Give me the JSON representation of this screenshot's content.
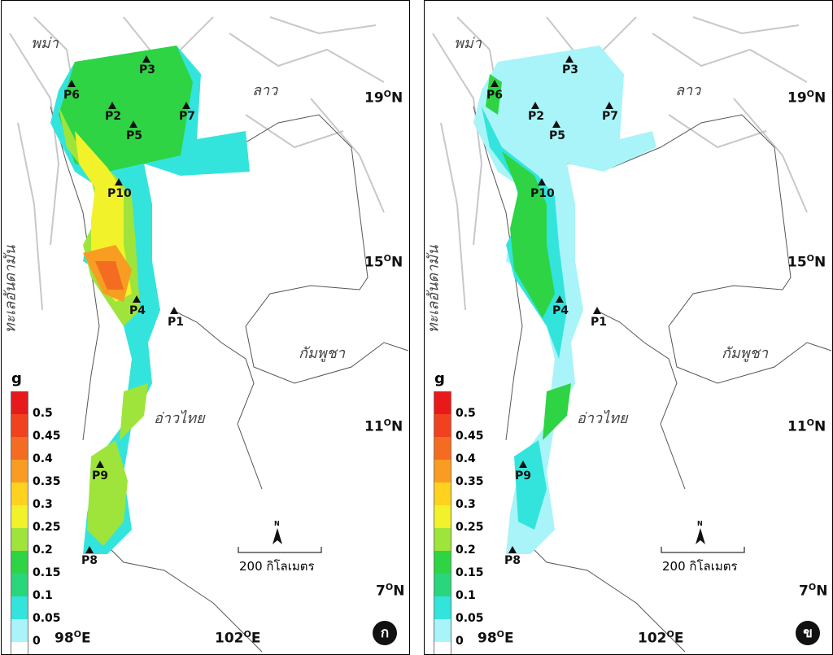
{
  "units": "g",
  "legend": {
    "values": [
      "0.5",
      "0.45",
      "0.4",
      "0.35",
      "0.3",
      "0.25",
      "0.2",
      "0.15",
      "0.1",
      "0.05",
      "0"
    ],
    "colors": [
      "#e8191a",
      "#f0421e",
      "#f46c21",
      "#f89d22",
      "#ffd21f",
      "#f2f22a",
      "#9fe43a",
      "#2ed443",
      "#29d67c",
      "#33e4dc",
      "#a8f4f8",
      "#ffffff"
    ]
  },
  "labels": {
    "myanmar": "พม่า",
    "laos": "ลาว",
    "cambodia": "กัมพูชา",
    "gulf": "อ่าวไทย",
    "andaman": "ทะเลอันดามัน",
    "lat19": "19",
    "lat15": "15",
    "lat11": "11",
    "lat7": "7",
    "lon98": "98",
    "lon102": "102",
    "deg": "O",
    "north": "N",
    "east": "E",
    "scale": "200 กิโลเมตร",
    "north_arrow": "N"
  },
  "sites": [
    "P1",
    "P2",
    "P3",
    "P4",
    "P5",
    "P6",
    "P7",
    "P8",
    "P9",
    "P10"
  ],
  "panels": [
    {
      "id": "ก"
    },
    {
      "id": "ข"
    }
  ]
}
